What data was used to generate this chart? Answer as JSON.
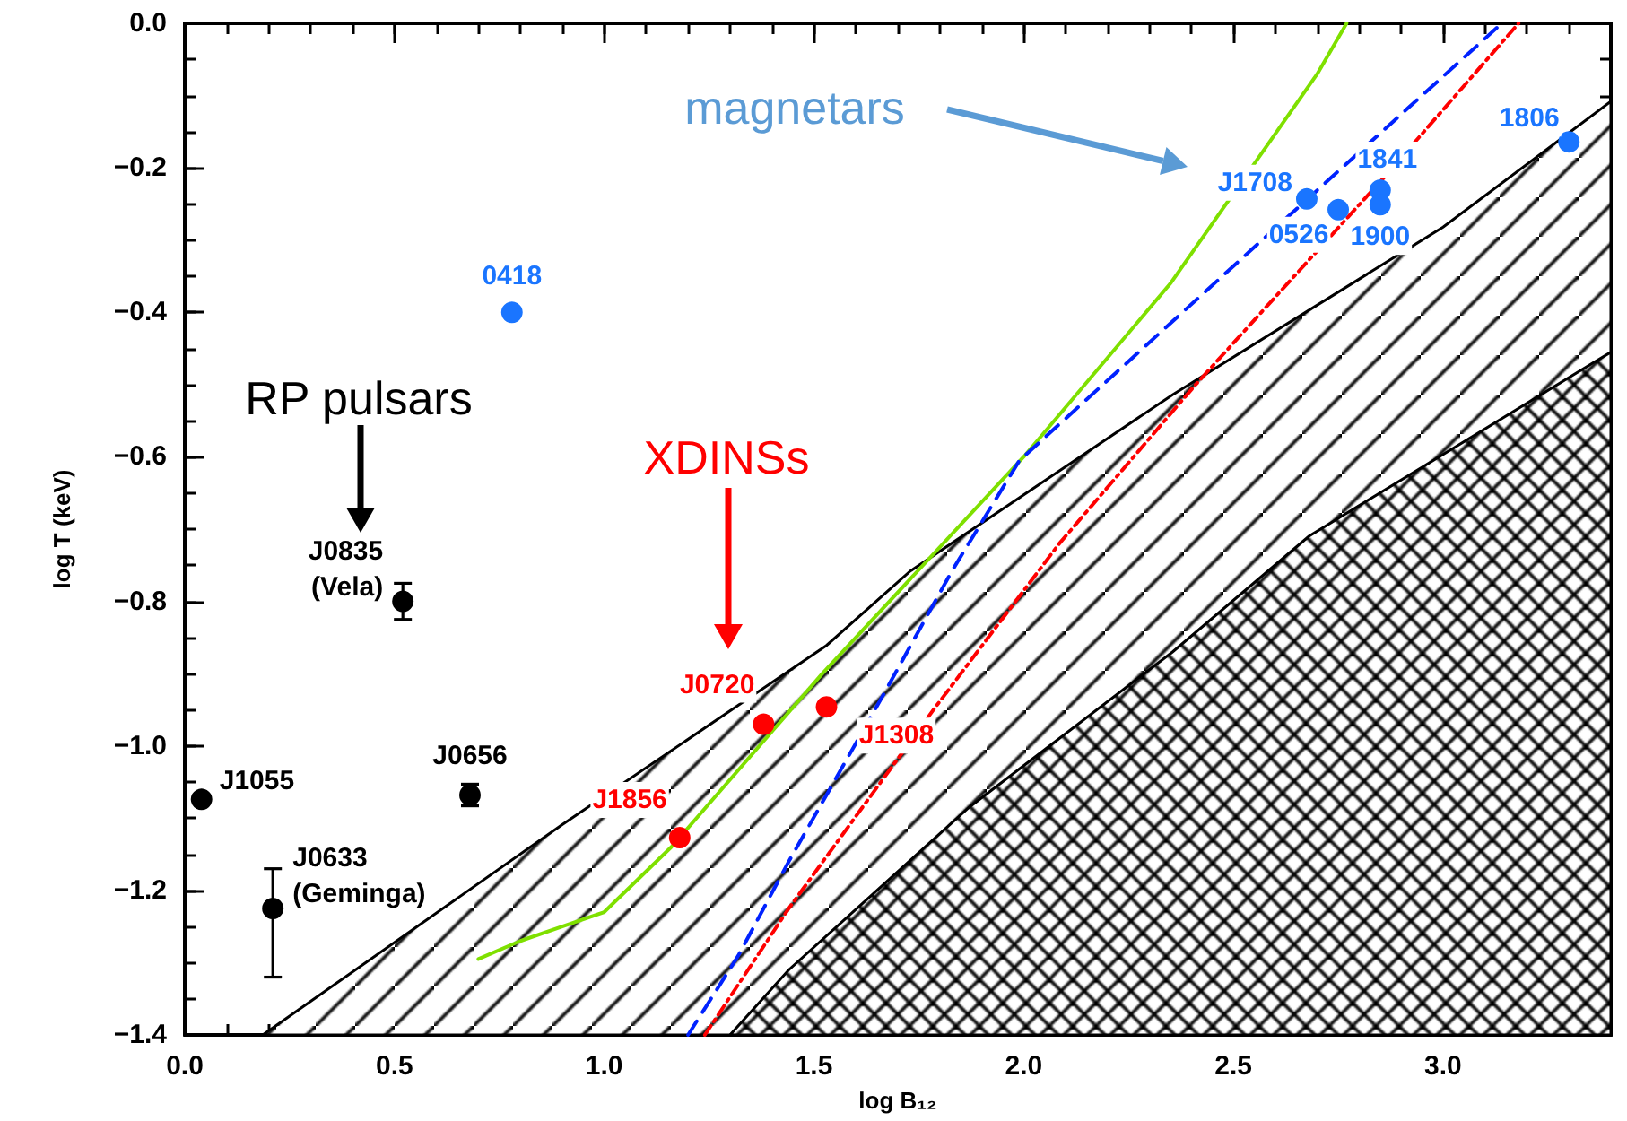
{
  "chart_data": {
    "type": "scatter",
    "xlabel": "log B₁₂",
    "ylabel": "log T (keV)",
    "xlim": [
      0,
      3.4
    ],
    "ylim": [
      -1.4,
      0
    ],
    "xticks": [
      {
        "value": 0,
        "label": "0.0"
      },
      {
        "value": 0.1,
        "label": null
      },
      {
        "value": 0.2,
        "label": null
      },
      {
        "value": 0.3,
        "label": null
      },
      {
        "value": 0.4,
        "label": null
      },
      {
        "value": 0.5,
        "label": "0.5"
      },
      {
        "value": 0.6,
        "label": null
      },
      {
        "value": 0.7,
        "label": null
      },
      {
        "value": 0.8,
        "label": null
      },
      {
        "value": 0.9,
        "label": null
      },
      {
        "value": 1,
        "label": "1.0"
      },
      {
        "value": 1.1,
        "label": null
      },
      {
        "value": 1.2,
        "label": null
      },
      {
        "value": 1.3,
        "label": null
      },
      {
        "value": 1.4,
        "label": null
      },
      {
        "value": 1.5,
        "label": "1.5"
      },
      {
        "value": 1.6,
        "label": null
      },
      {
        "value": 1.7,
        "label": null
      },
      {
        "value": 1.8,
        "label": null
      },
      {
        "value": 1.9,
        "label": null
      },
      {
        "value": 2,
        "label": "2.0"
      },
      {
        "value": 2.1,
        "label": null
      },
      {
        "value": 2.2,
        "label": null
      },
      {
        "value": 2.3,
        "label": null
      },
      {
        "value": 2.4,
        "label": null
      },
      {
        "value": 2.5,
        "label": "2.5"
      },
      {
        "value": 2.6,
        "label": null
      },
      {
        "value": 2.7,
        "label": null
      },
      {
        "value": 2.8,
        "label": null
      },
      {
        "value": 2.9,
        "label": null
      },
      {
        "value": 3,
        "label": "3.0"
      },
      {
        "value": 3.1,
        "label": null
      },
      {
        "value": 3.2,
        "label": null
      },
      {
        "value": 3.3,
        "label": null
      }
    ],
    "yticks": [
      {
        "value": -1.4,
        "label": "−1.4"
      },
      {
        "value": -1.35,
        "label": null
      },
      {
        "value": -1.3,
        "label": null
      },
      {
        "value": -1.25,
        "label": null
      },
      {
        "value": -1.2,
        "label": "−1.2"
      },
      {
        "value": -1.15,
        "label": null
      },
      {
        "value": -1.1,
        "label": null
      },
      {
        "value": -1.05,
        "label": null
      },
      {
        "value": -1,
        "label": "−1.0"
      },
      {
        "value": -0.95,
        "label": null
      },
      {
        "value": -0.9,
        "label": null
      },
      {
        "value": -0.85,
        "label": null
      },
      {
        "value": -0.8,
        "label": "−0.8"
      },
      {
        "value": -0.75,
        "label": null
      },
      {
        "value": -0.7,
        "label": null
      },
      {
        "value": -0.65,
        "label": null
      },
      {
        "value": -0.6,
        "label": "−0.6"
      },
      {
        "value": -0.55,
        "label": null
      },
      {
        "value": -0.5,
        "label": null
      },
      {
        "value": -0.45,
        "label": null
      },
      {
        "value": -0.4,
        "label": "−0.4"
      },
      {
        "value": -0.35,
        "label": null
      },
      {
        "value": -0.3,
        "label": null
      },
      {
        "value": -0.25,
        "label": null
      },
      {
        "value": -0.2,
        "label": "−0.2"
      },
      {
        "value": -0.15,
        "label": null
      },
      {
        "value": -0.1,
        "label": null
      },
      {
        "value": -0.05,
        "label": null
      },
      {
        "value": 0,
        "label": "0.0"
      }
    ],
    "series": [
      {
        "type": "area",
        "color": "#000000",
        "x": [
          0.186,
          0.9,
          1.53,
          1.73,
          2.355,
          3.0,
          3.4,
          3.4
        ],
        "values": [
          -1.4,
          -1.109,
          -0.861,
          -0.758,
          -0.514,
          -0.282,
          -0.108,
          -1.4
        ]
      },
      {
        "type": "area",
        "color": "#000000",
        "x": [
          1.3,
          1.44,
          1.87,
          2.355,
          2.68,
          3.4,
          3.4
        ],
        "values": [
          -1.4,
          -1.31,
          -1.085,
          -0.87,
          -0.71,
          -0.455,
          -1.4
        ]
      },
      {
        "type": "line",
        "color": "#7fe000",
        "line_style": "solid",
        "marker": "none",
        "x": [
          0.7,
          0.8,
          0.9,
          1.0,
          1.16,
          1.52,
          2.0,
          2.35,
          2.7,
          2.77
        ],
        "values": [
          -1.295,
          -1.27,
          -1.25,
          -1.23,
          -1.14,
          -0.9,
          -0.6,
          -0.36,
          -0.07,
          0.0
        ]
      },
      {
        "type": "line",
        "color": "#0022ff",
        "line_style": "dashed",
        "marker": "none",
        "x": [
          1.2,
          1.32,
          1.44,
          1.66,
          1.83,
          1.99,
          2.54,
          3.14
        ],
        "values": [
          -1.4,
          -1.29,
          -1.16,
          -0.935,
          -0.757,
          -0.605,
          -0.315,
          0.0
        ]
      },
      {
        "type": "line",
        "color": "#ff0000",
        "line_style": "dotted",
        "marker": "none",
        "x": [
          1.24,
          1.44,
          1.785,
          2.085,
          2.41,
          2.855,
          3.18
        ],
        "values": [
          -1.4,
          -1.225,
          -0.95,
          -0.72,
          -0.5,
          -0.216,
          0.0
        ]
      },
      {
        "type": "scatter",
        "color": "#000000",
        "marker": "circle",
        "x": [
          0.04,
          0.21,
          0.52,
          0.68
        ],
        "values": [
          -1.074,
          -1.225,
          -0.8,
          -1.068
        ],
        "errors": [
          null,
          [
            -1.32,
            -1.17
          ],
          0.025,
          0.015
        ]
      },
      {
        "color": "#ff0000",
        "marker": "circle",
        "x": [
          1.18,
          1.38,
          1.53
        ],
        "values": [
          -1.127,
          -0.97,
          -0.946
        ]
      },
      {
        "color": "#1a75ff",
        "marker": "circle",
        "x": [
          0.78,
          2.675,
          2.75,
          2.85,
          2.85,
          3.3
        ],
        "values": [
          -0.4,
          -0.243,
          -0.258,
          -0.231,
          -0.251,
          -0.164
        ]
      }
    ],
    "annotations": [
      {
        "text": "J1055",
        "x": 0.04,
        "y": -1.074
      },
      {
        "text": "J0633\n(Geminga)",
        "x": 0.21,
        "y": -1.225
      },
      {
        "text": "J0835\n(Vela)",
        "x": 0.52,
        "y": -0.8
      },
      {
        "text": "J0656",
        "x": 0.68,
        "y": -1.068
      },
      {
        "text": "J1856",
        "x": 1.18,
        "y": -1.127
      },
      {
        "text": "J0720",
        "x": 1.38,
        "y": -0.97
      },
      {
        "text": "J1308",
        "x": 1.53,
        "y": -0.946
      },
      {
        "text": "0418",
        "x": 0.78,
        "y": -0.4
      },
      {
        "text": "J1708",
        "x": 2.675,
        "y": -0.243
      },
      {
        "text": "0526",
        "x": 2.75,
        "y": -0.258
      },
      {
        "text": "1841",
        "x": 2.85,
        "y": -0.231
      },
      {
        "text": "1900",
        "x": 2.85,
        "y": -0.251
      },
      {
        "text": "1806",
        "x": 3.3,
        "y": -0.164
      },
      "RP pulsars",
      "XDINSs",
      "magnetars"
    ]
  }
}
